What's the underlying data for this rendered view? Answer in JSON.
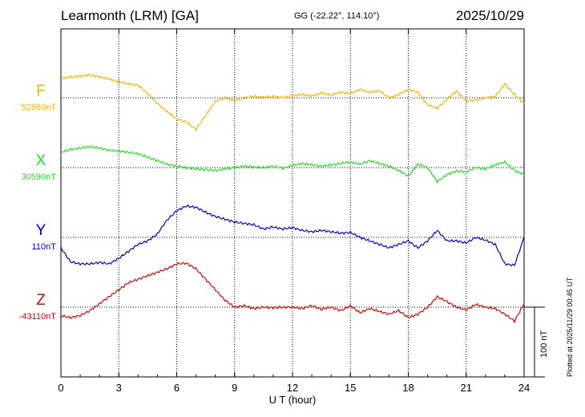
{
  "header": {
    "station": "Learmonth (LRM)  [GA]",
    "coords": "GG (-22.22°, 114.10°)",
    "date": "2025/10/29"
  },
  "plotted_note": "Plotted at 2025/11/29 00:45 UT",
  "scale_label": "100 nT",
  "chart_data": {
    "type": "line",
    "title": "Learmonth (LRM)  [GA]",
    "xlabel": "U T (hour)",
    "ylabel": "",
    "x_ticks": [
      "0",
      "3",
      "6",
      "9",
      "12",
      "15",
      "18",
      "21",
      "24"
    ],
    "xlim": [
      0,
      24
    ],
    "scale_nT": 100,
    "grid": true,
    "series": [
      {
        "name": "F",
        "color": "#f4b400",
        "baseline_label": "52860nT",
        "x": [
          0,
          0.5,
          1,
          1.5,
          2,
          2.5,
          3,
          3.5,
          4,
          4.5,
          5,
          5.5,
          6,
          6.5,
          7,
          7.5,
          8,
          8.5,
          9,
          9.5,
          10,
          10.5,
          11,
          11.5,
          12,
          12.5,
          13,
          13.5,
          14,
          14.5,
          15,
          15.5,
          16,
          16.5,
          17,
          17.5,
          18,
          18.5,
          19,
          19.5,
          20,
          20.5,
          21,
          21.5,
          22,
          22.5,
          23,
          23.5,
          24
        ],
        "y": [
          28,
          30,
          31,
          33,
          30,
          27,
          23,
          20,
          18,
          6,
          -8,
          -20,
          -30,
          -35,
          -45,
          -25,
          -5,
          0,
          -4,
          0,
          2,
          1,
          2,
          0,
          3,
          5,
          3,
          7,
          4,
          8,
          6,
          12,
          8,
          10,
          0,
          5,
          12,
          8,
          -10,
          -15,
          -2,
          10,
          -5,
          -3,
          0,
          2,
          20,
          5,
          -8
        ]
      },
      {
        "name": "X",
        "color": "#22dd22",
        "baseline_label": "30590nT",
        "x": [
          0,
          0.5,
          1,
          1.5,
          2,
          2.5,
          3,
          3.5,
          4,
          4.5,
          5,
          5.5,
          6,
          6.5,
          7,
          7.5,
          8,
          8.5,
          9,
          9.5,
          10,
          10.5,
          11,
          11.5,
          12,
          12.5,
          13,
          13.5,
          14,
          14.5,
          15,
          15.5,
          16,
          16.5,
          17,
          17.5,
          18,
          18.5,
          19,
          19.5,
          20,
          20.5,
          21,
          21.5,
          22,
          22.5,
          23,
          23.5,
          24
        ],
        "y": [
          22,
          26,
          28,
          30,
          28,
          25,
          24,
          22,
          20,
          15,
          10,
          5,
          2,
          0,
          -2,
          -3,
          -4,
          -2,
          0,
          2,
          1,
          0,
          2,
          -1,
          3,
          6,
          4,
          2,
          4,
          6,
          8,
          5,
          10,
          6,
          2,
          -4,
          -12,
          5,
          0,
          -20,
          -10,
          -5,
          -6,
          0,
          -2,
          4,
          8,
          -4,
          -10
        ]
      },
      {
        "name": "Y",
        "color": "#0000cc",
        "baseline_label": "110nT",
        "x": [
          0,
          0.5,
          1,
          1.5,
          2,
          2.5,
          3,
          3.5,
          4,
          4.5,
          5,
          5.5,
          6,
          6.5,
          7,
          7.5,
          8,
          8.5,
          9,
          9.5,
          10,
          10.5,
          11,
          11.5,
          12,
          12.5,
          13,
          13.5,
          14,
          14.5,
          15,
          15.5,
          16,
          16.5,
          17,
          17.5,
          18,
          18.5,
          19,
          19.5,
          20,
          20.5,
          21,
          21.5,
          22,
          22.5,
          23,
          23.5,
          24
        ],
        "y": [
          -15,
          -35,
          -38,
          -38,
          -36,
          -38,
          -30,
          -20,
          -10,
          -5,
          5,
          25,
          38,
          45,
          43,
          36,
          30,
          26,
          22,
          20,
          18,
          12,
          15,
          12,
          14,
          10,
          8,
          10,
          8,
          6,
          7,
          0,
          -5,
          -10,
          -15,
          -10,
          -5,
          -15,
          -5,
          10,
          -5,
          -5,
          -8,
          0,
          -4,
          -10,
          -38,
          -40,
          0
        ]
      },
      {
        "name": "Z",
        "color": "#e00000",
        "baseline_label": "-43110nT",
        "x": [
          0,
          0.5,
          1,
          1.5,
          2,
          2.5,
          3,
          3.5,
          4,
          4.5,
          5,
          5.5,
          6,
          6.5,
          7,
          7.5,
          8,
          8.5,
          9,
          9.5,
          10,
          10.5,
          11,
          11.5,
          12,
          12.5,
          13,
          13.5,
          14,
          14.5,
          15,
          15.5,
          16,
          16.5,
          17,
          17.5,
          18,
          18.5,
          19,
          19.5,
          20,
          20.5,
          21,
          21.5,
          22,
          22.5,
          23,
          23.5,
          24
        ],
        "y": [
          -12,
          -15,
          -12,
          -5,
          5,
          15,
          25,
          35,
          40,
          45,
          50,
          55,
          62,
          63,
          55,
          40,
          25,
          10,
          0,
          2,
          -2,
          0,
          -1,
          0,
          0,
          -2,
          2,
          -3,
          0,
          -5,
          2,
          -8,
          -2,
          -6,
          -10,
          -5,
          -15,
          -10,
          0,
          15,
          8,
          0,
          -4,
          4,
          0,
          -2,
          -10,
          -20,
          5
        ]
      }
    ]
  }
}
